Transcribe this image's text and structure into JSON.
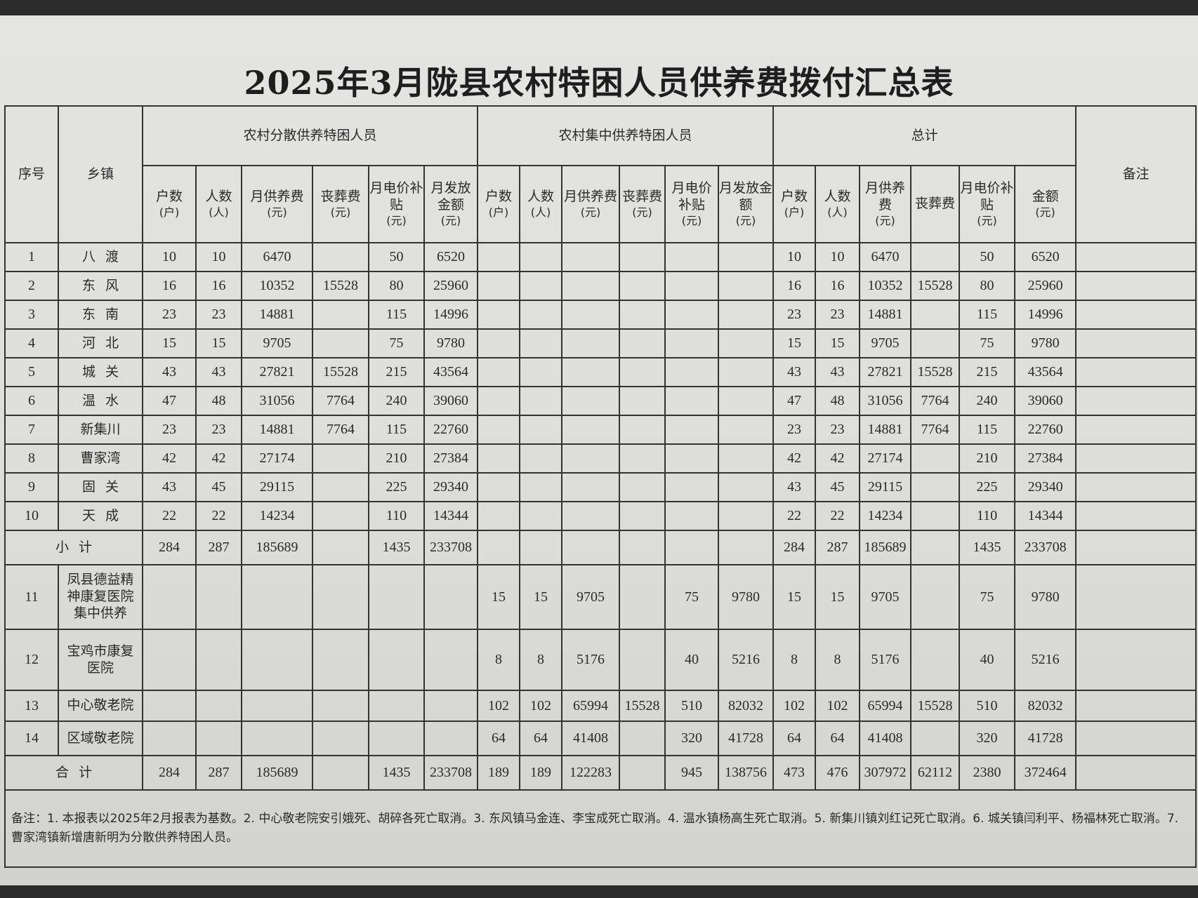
{
  "title": "2025年3月陇县农村特困人员供养费拨付汇总表",
  "headers": {
    "seq": "序号",
    "town": "乡镇",
    "group_dispersed": "农村分散供养特困人员",
    "group_concentrated": "农村集中供养特困人员",
    "group_total": "总计",
    "remark": "备注",
    "dispersed_cols": [
      {
        "label": "户数",
        "unit": "(户)"
      },
      {
        "label": "人数",
        "unit": "(人)"
      },
      {
        "label": "月供养费",
        "unit": "(元)"
      },
      {
        "label": "丧葬费",
        "unit": "(元)"
      },
      {
        "label": "月电价补贴",
        "unit": "(元)"
      },
      {
        "label": "月发放金额",
        "unit": "(元)"
      }
    ],
    "concentrated_cols": [
      {
        "label": "户数",
        "unit": "(户)"
      },
      {
        "label": "人数",
        "unit": "(人)"
      },
      {
        "label": "月供养费",
        "unit": "(元)"
      },
      {
        "label": "丧葬费",
        "unit": "(元)"
      },
      {
        "label": "月电价补贴",
        "unit": "(元)"
      },
      {
        "label": "月发放金额",
        "unit": "(元)"
      }
    ],
    "total_cols": [
      {
        "label": "户数",
        "unit": "(户)"
      },
      {
        "label": "人数",
        "unit": "(人)"
      },
      {
        "label": "月供养费",
        "unit": "(元)"
      },
      {
        "label": "丧葬费",
        "unit": ""
      },
      {
        "label": "月电价补贴",
        "unit": "(元)"
      },
      {
        "label": "金额",
        "unit": "(元)"
      }
    ]
  },
  "rows": [
    {
      "seq": "1",
      "town": "八渡",
      "dispersed": [
        "10",
        "10",
        "6470",
        "",
        "50",
        "6520"
      ],
      "concentrated": [
        "",
        "",
        "",
        "",
        "",
        ""
      ],
      "total": [
        "10",
        "10",
        "6470",
        "",
        "50",
        "6520"
      ],
      "remark": ""
    },
    {
      "seq": "2",
      "town": "东风",
      "dispersed": [
        "16",
        "16",
        "10352",
        "15528",
        "80",
        "25960"
      ],
      "concentrated": [
        "",
        "",
        "",
        "",
        "",
        ""
      ],
      "total": [
        "16",
        "16",
        "10352",
        "15528",
        "80",
        "25960"
      ],
      "remark": ""
    },
    {
      "seq": "3",
      "town": "东南",
      "dispersed": [
        "23",
        "23",
        "14881",
        "",
        "115",
        "14996"
      ],
      "concentrated": [
        "",
        "",
        "",
        "",
        "",
        ""
      ],
      "total": [
        "23",
        "23",
        "14881",
        "",
        "115",
        "14996"
      ],
      "remark": ""
    },
    {
      "seq": "4",
      "town": "河北",
      "dispersed": [
        "15",
        "15",
        "9705",
        "",
        "75",
        "9780"
      ],
      "concentrated": [
        "",
        "",
        "",
        "",
        "",
        ""
      ],
      "total": [
        "15",
        "15",
        "9705",
        "",
        "75",
        "9780"
      ],
      "remark": ""
    },
    {
      "seq": "5",
      "town": "城关",
      "dispersed": [
        "43",
        "43",
        "27821",
        "15528",
        "215",
        "43564"
      ],
      "concentrated": [
        "",
        "",
        "",
        "",
        "",
        ""
      ],
      "total": [
        "43",
        "43",
        "27821",
        "15528",
        "215",
        "43564"
      ],
      "remark": ""
    },
    {
      "seq": "6",
      "town": "温水",
      "dispersed": [
        "47",
        "48",
        "31056",
        "7764",
        "240",
        "39060"
      ],
      "concentrated": [
        "",
        "",
        "",
        "",
        "",
        ""
      ],
      "total": [
        "47",
        "48",
        "31056",
        "7764",
        "240",
        "39060"
      ],
      "remark": ""
    },
    {
      "seq": "7",
      "town": "新集川",
      "dispersed": [
        "23",
        "23",
        "14881",
        "7764",
        "115",
        "22760"
      ],
      "concentrated": [
        "",
        "",
        "",
        "",
        "",
        ""
      ],
      "total": [
        "23",
        "23",
        "14881",
        "7764",
        "115",
        "22760"
      ],
      "remark": ""
    },
    {
      "seq": "8",
      "town": "曹家湾",
      "dispersed": [
        "42",
        "42",
        "27174",
        "",
        "210",
        "27384"
      ],
      "concentrated": [
        "",
        "",
        "",
        "",
        "",
        ""
      ],
      "total": [
        "42",
        "42",
        "27174",
        "",
        "210",
        "27384"
      ],
      "remark": ""
    },
    {
      "seq": "9",
      "town": "固关",
      "dispersed": [
        "43",
        "45",
        "29115",
        "",
        "225",
        "29340"
      ],
      "concentrated": [
        "",
        "",
        "",
        "",
        "",
        ""
      ],
      "total": [
        "43",
        "45",
        "29115",
        "",
        "225",
        "29340"
      ],
      "remark": ""
    },
    {
      "seq": "10",
      "town": "天成",
      "dispersed": [
        "22",
        "22",
        "14234",
        "",
        "110",
        "14344"
      ],
      "concentrated": [
        "",
        "",
        "",
        "",
        "",
        ""
      ],
      "total": [
        "22",
        "22",
        "14234",
        "",
        "110",
        "14344"
      ],
      "remark": ""
    }
  ],
  "subtotal": {
    "label": "小计",
    "dispersed": [
      "284",
      "287",
      "185689",
      "",
      "1435",
      "233708"
    ],
    "concentrated": [
      "",
      "",
      "",
      "",
      "",
      ""
    ],
    "total": [
      "284",
      "287",
      "185689",
      "",
      "1435",
      "233708"
    ],
    "remark": ""
  },
  "institutions": [
    {
      "seq": "11",
      "town": "凤县德益精神康复医院集中供养",
      "dispersed": [
        "",
        "",
        "",
        "",
        "",
        ""
      ],
      "concentrated": [
        "15",
        "15",
        "9705",
        "",
        "75",
        "9780"
      ],
      "total": [
        "15",
        "15",
        "9705",
        "",
        "75",
        "9780"
      ],
      "remark": ""
    },
    {
      "seq": "12",
      "town": "宝鸡市康复医院",
      "dispersed": [
        "",
        "",
        "",
        "",
        "",
        ""
      ],
      "concentrated": [
        "8",
        "8",
        "5176",
        "",
        "40",
        "5216"
      ],
      "total": [
        "8",
        "8",
        "5176",
        "",
        "40",
        "5216"
      ],
      "remark": ""
    },
    {
      "seq": "13",
      "town": "中心敬老院",
      "dispersed": [
        "",
        "",
        "",
        "",
        "",
        ""
      ],
      "concentrated": [
        "102",
        "102",
        "65994",
        "15528",
        "510",
        "82032"
      ],
      "total": [
        "102",
        "102",
        "65994",
        "15528",
        "510",
        "82032"
      ],
      "remark": ""
    },
    {
      "seq": "14",
      "town": "区域敬老院",
      "dispersed": [
        "",
        "",
        "",
        "",
        "",
        ""
      ],
      "concentrated": [
        "64",
        "64",
        "41408",
        "",
        "320",
        "41728"
      ],
      "total": [
        "64",
        "64",
        "41408",
        "",
        "320",
        "41728"
      ],
      "remark": ""
    }
  ],
  "grand_total": {
    "label": "合计",
    "dispersed": [
      "284",
      "287",
      "185689",
      "",
      "1435",
      "233708"
    ],
    "concentrated": [
      "189",
      "189",
      "122283",
      "",
      "945",
      "138756"
    ],
    "total": [
      "473",
      "476",
      "307972",
      "62112",
      "2380",
      "372464"
    ],
    "remark": ""
  },
  "notes": "备注：1. 本报表以2025年2月报表为基数。2. 中心敬老院安引娥死、胡碎各死亡取消。3. 东风镇马金连、李宝成死亡取消。4. 温水镇杨高生死亡取消。5. 新集川镇刘红记死亡取消。6. 城关镇闫利平、杨福林死亡取消。7. 曹家湾镇新增唐新明为分散供养特困人员。"
}
